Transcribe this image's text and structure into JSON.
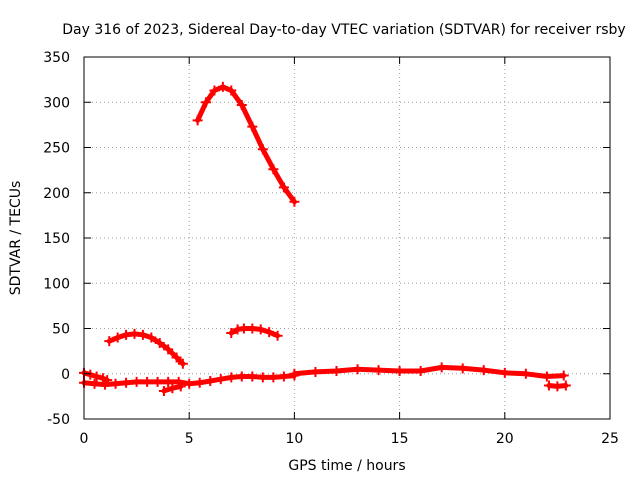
{
  "chart_data": {
    "type": "scatter",
    "title": "Day 316 of 2023, Sidereal Day-to-day VTEC variation (SDTVAR) for receiver rsby",
    "xlabel": "GPS time / hours",
    "ylabel": "SDTVAR / TECUs",
    "xlim": [
      0,
      25
    ],
    "ylim": [
      -50,
      350
    ],
    "xticks": [
      0,
      5,
      10,
      15,
      20,
      25
    ],
    "yticks": [
      -50,
      0,
      50,
      100,
      150,
      200,
      250,
      300,
      350
    ],
    "grid": true,
    "legend": "none",
    "color": "#ff0000",
    "series": [
      {
        "name": "arc-high",
        "x": [
          5.4,
          5.8,
          6.2,
          6.6,
          7.0,
          7.5,
          8.0,
          8.5,
          9.0,
          9.5,
          10.0
        ],
        "y": [
          280,
          300,
          313,
          317,
          313,
          297,
          273,
          248,
          226,
          206,
          190
        ]
      },
      {
        "name": "arc-early",
        "x": [
          1.2,
          1.6,
          2.0,
          2.4,
          2.8,
          3.2,
          3.6,
          4.0,
          4.4,
          4.7
        ],
        "y": [
          36,
          40,
          43,
          44,
          43,
          40,
          34,
          27,
          18,
          11
        ]
      },
      {
        "name": "arc-mid",
        "x": [
          7.0,
          7.3,
          7.6,
          8.0,
          8.4,
          8.8,
          9.2
        ],
        "y": [
          45,
          49,
          50,
          50,
          49,
          46,
          42
        ]
      },
      {
        "name": "arc-start",
        "x": [
          0.0,
          0.3,
          0.6,
          0.9,
          1.1
        ],
        "y": [
          1,
          -1,
          -3,
          -5,
          -7
        ]
      },
      {
        "name": "band-low",
        "x": [
          0.0,
          0.5,
          1.0,
          1.5,
          2.0,
          2.5,
          3.0,
          3.5,
          4.0,
          4.5,
          5.0,
          5.5,
          6.0,
          6.5,
          7.0,
          7.5,
          8.0,
          8.5,
          9.0,
          9.5,
          10.0
        ],
        "y": [
          -10,
          -11,
          -12,
          -11,
          -10,
          -9,
          -9,
          -9,
          -9,
          -9,
          -11,
          -10,
          -8,
          -6,
          -4,
          -3,
          -3,
          -4,
          -4,
          -3,
          -2
        ]
      },
      {
        "name": "band-high",
        "x": [
          10.0,
          11.0,
          12.0,
          13.0,
          14.0,
          15.0,
          16.0,
          17.0,
          18.0,
          19.0,
          20.0,
          21.0,
          22.0,
          22.8
        ],
        "y": [
          0,
          2,
          3,
          5,
          4,
          3,
          3,
          7,
          6,
          4,
          1,
          0,
          -3,
          -2
        ]
      },
      {
        "name": "dip-low",
        "x": [
          3.8,
          4.2,
          4.6
        ],
        "y": [
          -19,
          -16,
          -14
        ]
      },
      {
        "name": "tail",
        "x": [
          22.1,
          22.5,
          22.9
        ],
        "y": [
          -13,
          -14,
          -13
        ]
      }
    ]
  }
}
